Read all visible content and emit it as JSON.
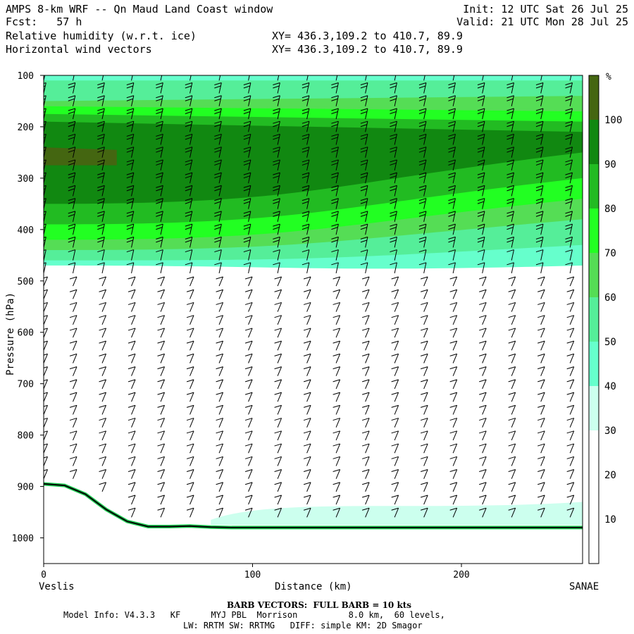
{
  "header": {
    "title": "AMPS 8-km WRF -- Qn Maud Land Coast window",
    "fcst": "Fcst:   57 h",
    "init": "Init: 12 UTC Sat 26 Jul 25",
    "valid": "Valid: 21 UTC Mon 28 Jul 25",
    "field1": "Relative humidity (w.r.t. ice)",
    "field2": "Horizontal wind vectors",
    "xy1": "XY= 436.3,109.2 to 410.7, 89.9",
    "xy2": "XY= 436.3,109.2 to 410.7, 89.9"
  },
  "footer": {
    "barb_note": "BARB VECTORS:  FULL BARB = 10 kts",
    "model_info": "Model Info: V4.3.3   KF      MYJ PBL  Morrison          8.0 km,  60 levels,",
    "physics": "LW: RRTM SW: RRTMG   DIFF: simple KM: 2D Smagor"
  },
  "chart_data": {
    "type": "heatmap",
    "title": "Relative humidity (w.r.t. ice)",
    "xlabel": "Distance (km)",
    "ylabel": "Pressure (hPa)",
    "xlim": [
      0,
      258
    ],
    "ylim": [
      1050,
      100
    ],
    "x_ticks": [
      0,
      100,
      200
    ],
    "y_ticks": [
      100,
      200,
      300,
      400,
      500,
      600,
      700,
      800,
      900,
      1000
    ],
    "x_endpoint_labels": [
      "Veslis",
      "SANAE"
    ],
    "colorbar": {
      "unit": "%",
      "levels": [
        10,
        20,
        30,
        40,
        50,
        60,
        70,
        80,
        90,
        100
      ],
      "colors": [
        "#ffffff",
        "#ffffff",
        "#ffffff",
        "#ccffee",
        "#66ffcc",
        "#55ee99",
        "#55dd55",
        "#22ff22",
        "#22bb22",
        "#118811",
        "#446611"
      ]
    },
    "rh_layers_upper": [
      {
        "color": "#66ffcc",
        "p_top": [
          100,
          100
        ],
        "p_bot": [
          470,
          470
        ]
      },
      {
        "color": "#55ee99",
        "p_top": [
          110,
          110
        ],
        "p_bot": [
          460,
          430
        ]
      },
      {
        "color": "#55dd55",
        "p_top": [
          150,
          140
        ],
        "p_bot": [
          440,
          380
        ]
      },
      {
        "color": "#22ff22",
        "p_top": [
          160,
          170
        ],
        "p_bot": [
          420,
          340
        ]
      },
      {
        "color": "#22bb22",
        "p_top": [
          175,
          190
        ],
        "p_bot": [
          390,
          300
        ]
      },
      {
        "color": "#118811",
        "p_top": [
          190,
          210
        ],
        "p_bot": [
          350,
          250
        ]
      }
    ],
    "rh_lower_band": {
      "color": "#ccffee",
      "p_top": 950,
      "p_bot": 975
    },
    "surface_pressure": {
      "x": [
        0,
        10,
        20,
        30,
        40,
        50,
        60,
        70,
        80,
        90,
        100,
        150,
        200,
        258
      ],
      "p": [
        895,
        898,
        915,
        945,
        968,
        978,
        978,
        977,
        979,
        980,
        980,
        980,
        980,
        980
      ]
    },
    "barb_columns_km": [
      0,
      14,
      28,
      42,
      56,
      70,
      84,
      98,
      112,
      126,
      140,
      154,
      168,
      182,
      196,
      210,
      224,
      238,
      252
    ]
  }
}
